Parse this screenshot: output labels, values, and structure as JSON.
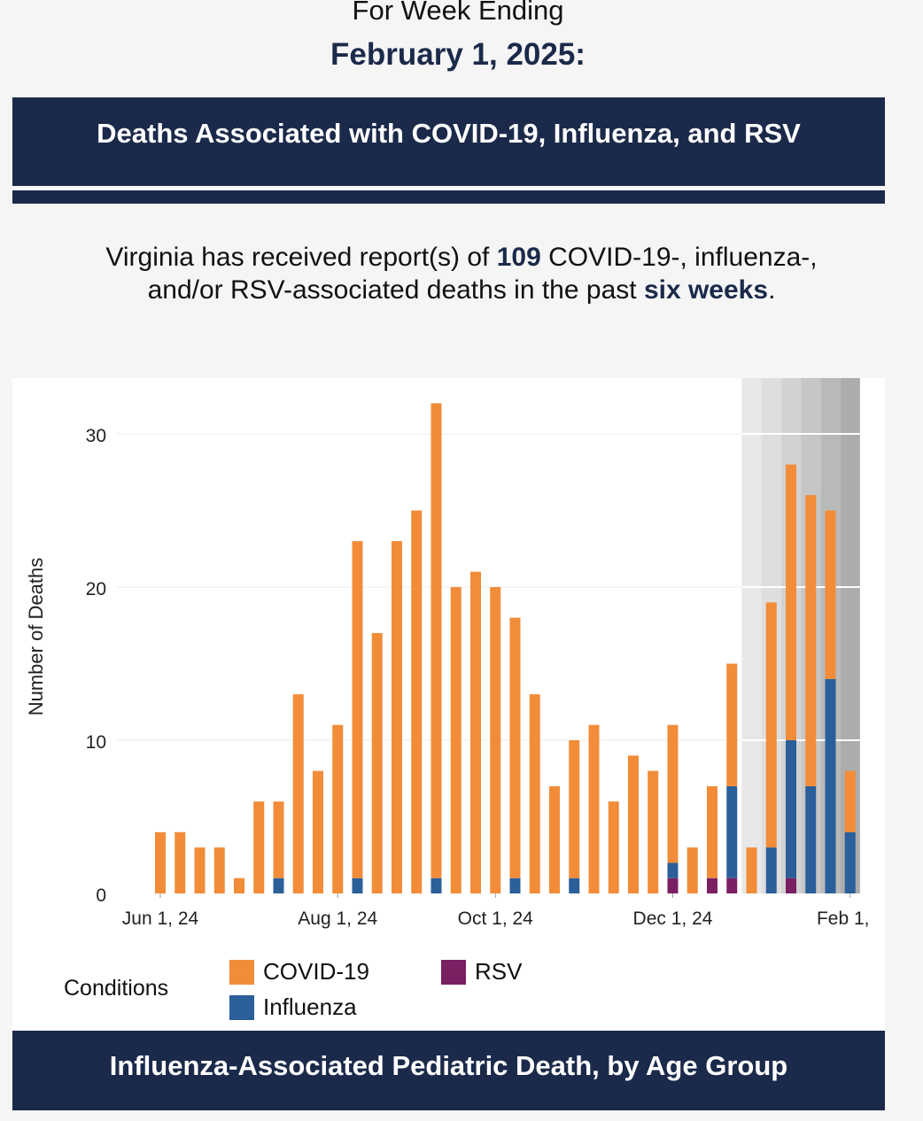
{
  "header": {
    "week_label": "For Week Ending",
    "week_date": "February 1, 2025:"
  },
  "deaths_banner": "Deaths Associated with COVID-19, Influenza, and RSV",
  "summary": {
    "prefix": "Virginia has received report(s) of ",
    "count": "109",
    "middle1": " COVID-19-, influenza-,",
    "middle2": "and/or RSV-associated deaths in the past ",
    "period": "six weeks",
    "suffix": "."
  },
  "legend": {
    "title": "Conditions",
    "items": [
      {
        "name": "COVID-19",
        "color": "#f28c38"
      },
      {
        "name": "Influenza",
        "color": "#2b5f9a"
      },
      {
        "name": "RSV",
        "color": "#7b1f63"
      }
    ]
  },
  "bottom_banner": "Influenza-Associated Pediatric Death, by Age Group",
  "chart_data": {
    "type": "bar",
    "stacked": true,
    "ylabel": "Number of Deaths",
    "ylim": [
      0,
      33.5
    ],
    "yticks": [
      0,
      10,
      20,
      30
    ],
    "xtick_labels": [
      "Jun 1, 24",
      "Aug 1, 24",
      "Oct 1, 24",
      "Dec 1, 24",
      "Feb 1,"
    ],
    "categories": [
      "2024-06-01",
      "2024-06-08",
      "2024-06-15",
      "2024-06-22",
      "2024-06-29",
      "2024-07-06",
      "2024-07-13",
      "2024-07-20",
      "2024-07-27",
      "2024-08-03",
      "2024-08-10",
      "2024-08-17",
      "2024-08-24",
      "2024-08-31",
      "2024-09-07",
      "2024-09-14",
      "2024-09-21",
      "2024-09-28",
      "2024-10-05",
      "2024-10-12",
      "2024-10-19",
      "2024-10-26",
      "2024-11-02",
      "2024-11-09",
      "2024-11-16",
      "2024-11-23",
      "2024-11-30",
      "2024-12-07",
      "2024-12-14",
      "2024-12-21",
      "2024-12-28",
      "2025-01-04",
      "2025-01-11",
      "2025-01-18",
      "2025-01-25",
      "2025-02-01"
    ],
    "series": [
      {
        "name": "COVID-19",
        "color": "#f28c38",
        "values": [
          4,
          4,
          3,
          3,
          1,
          6,
          5,
          13,
          8,
          11,
          22,
          17,
          23,
          25,
          31,
          20,
          21,
          20,
          17,
          13,
          7,
          9,
          11,
          6,
          9,
          8,
          9,
          3,
          6,
          8,
          3,
          16,
          18,
          19,
          11,
          4
        ]
      },
      {
        "name": "Influenza",
        "color": "#2b5f9a",
        "values": [
          0,
          0,
          0,
          0,
          0,
          0,
          1,
          0,
          0,
          0,
          1,
          0,
          0,
          0,
          1,
          0,
          0,
          0,
          1,
          0,
          0,
          1,
          0,
          0,
          0,
          0,
          1,
          0,
          0,
          6,
          0,
          3,
          9,
          7,
          14,
          4
        ]
      },
      {
        "name": "RSV",
        "color": "#7b1f63",
        "values": [
          0,
          0,
          0,
          0,
          0,
          0,
          0,
          0,
          0,
          0,
          0,
          0,
          0,
          0,
          0,
          0,
          0,
          0,
          0,
          0,
          0,
          0,
          0,
          0,
          0,
          0,
          1,
          0,
          1,
          1,
          0,
          0,
          1,
          0,
          0,
          0
        ]
      }
    ],
    "shaded_recent_weeks": 6,
    "grid": true
  }
}
